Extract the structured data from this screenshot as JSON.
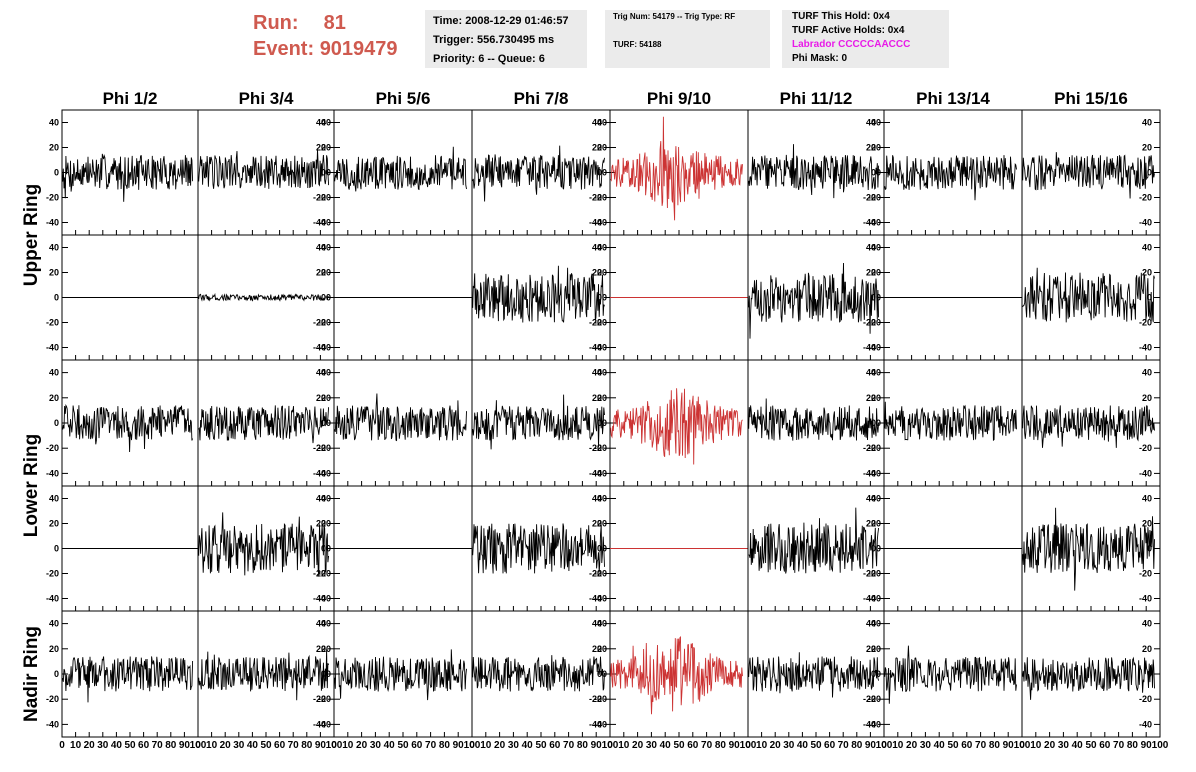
{
  "header": {
    "run_label": "Run:",
    "run_value": "81",
    "event_label": "Event:",
    "event_value": "9019479",
    "time": "Time: 2008-12-29 01:46:57",
    "trigger": "Trigger: 556.730495 ms",
    "priority": "Priority: 6 -- Queue: 6",
    "trig_num": "Trig Num: 54179 -- Trig Type: RF",
    "turf": "TURF: 54188",
    "turf_this_hold": "TURF This Hold: 0x4",
    "turf_active_holds": "TURF Active Holds: 0x4",
    "labrador": "Labrador CCCCCAACCC",
    "phi_mask": "Phi Mask: 0"
  },
  "columns": [
    "Phi 1/2",
    "Phi 3/4",
    "Phi 5/6",
    "Phi 7/8",
    "Phi 9/10",
    "Phi 11/12",
    "Phi 13/14",
    "Phi 15/16"
  ],
  "ring_labels": [
    "Upper Ring",
    "Lower Ring",
    "Nadir Ring"
  ],
  "y_ticks": [
    "40",
    "20",
    "0",
    "-20",
    "-40"
  ],
  "x_ticks": [
    "0",
    "10",
    "20",
    "30",
    "40",
    "50",
    "60",
    "70",
    "80",
    "90",
    "100"
  ],
  "colors": {
    "run_text": "#cf5a4f",
    "trace": "#000000",
    "trace_highlight": "#cc3333",
    "labrador": "#e81ae8",
    "box_bg": "#ebebeb"
  },
  "chart_data": {
    "type": "line",
    "xlim": [
      0,
      100
    ],
    "ylim": [
      -50,
      50
    ],
    "row_order": [
      "Upper Ring",
      "Upper Ring",
      "Lower Ring",
      "Lower Ring",
      "Nadir Ring"
    ],
    "highlight_column": "Phi 9/10",
    "traces": [
      [
        "noise",
        "noise",
        "noise",
        "noise",
        "noise-burst",
        "noise",
        "noise",
        "noise"
      ],
      [
        "flat",
        "small-noise",
        "flat",
        "noise-large",
        "flat",
        "noise-large",
        "flat",
        "noise-large"
      ],
      [
        "noise",
        "noise",
        "noise",
        "noise",
        "noise-burst",
        "noise",
        "noise",
        "noise"
      ],
      [
        "flat",
        "noise-large",
        "flat",
        "noise-large",
        "flat",
        "noise-large",
        "flat",
        "noise-large"
      ],
      [
        "noise",
        "noise",
        "noise",
        "noise",
        "noise-burst",
        "noise",
        "noise",
        "noise"
      ]
    ]
  }
}
